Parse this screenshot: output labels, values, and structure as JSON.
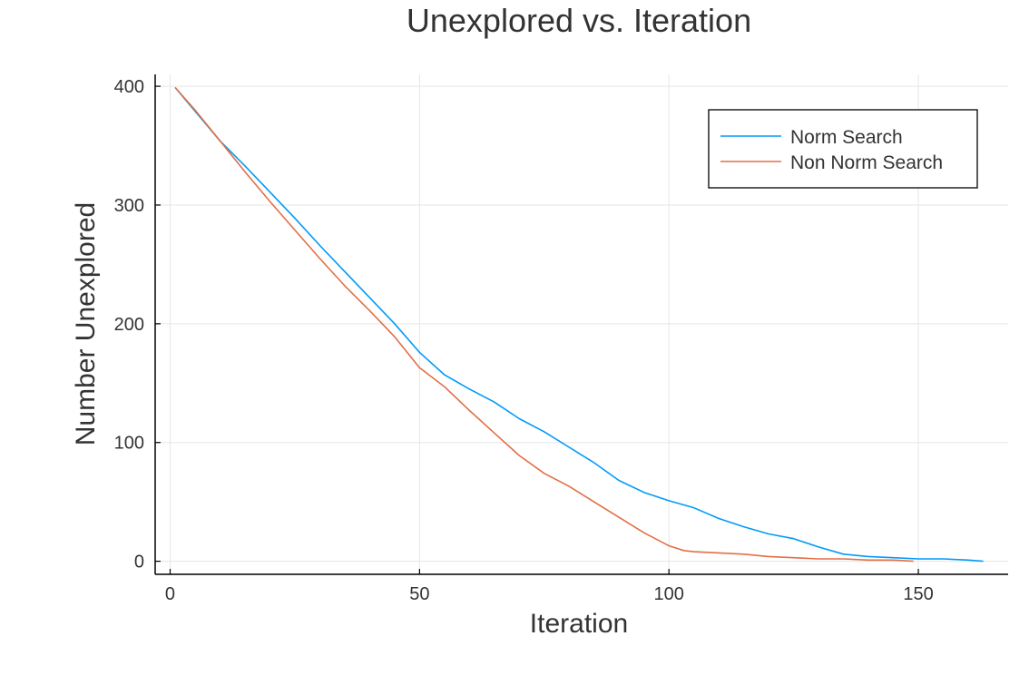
{
  "chart_data": {
    "type": "line",
    "title": "Unexplored vs. Iteration",
    "xlabel": "Iteration",
    "ylabel": "Number Unexplored",
    "xlim": [
      -3,
      168
    ],
    "ylim": [
      -11,
      410
    ],
    "xticks": [
      0,
      50,
      100,
      150
    ],
    "yticks": [
      0,
      100,
      200,
      300,
      400
    ],
    "grid": true,
    "legend_position": "top-right",
    "series": [
      {
        "name": "Norm Search",
        "color": "#009af9",
        "x": [
          1,
          5,
          10,
          15,
          20,
          25,
          30,
          35,
          40,
          45,
          50,
          55,
          60,
          65,
          70,
          75,
          80,
          85,
          90,
          95,
          100,
          105,
          110,
          115,
          120,
          125,
          130,
          135,
          140,
          145,
          150,
          155,
          160,
          163
        ],
        "y": [
          399,
          379,
          354,
          333,
          311,
          289,
          266,
          244,
          222,
          200,
          176,
          157,
          145,
          134,
          120,
          109,
          96,
          83,
          68,
          58,
          51,
          45,
          36,
          29,
          23,
          19,
          12,
          6,
          4,
          3,
          2,
          2,
          1,
          0
        ]
      },
      {
        "name": "Non Norm Search",
        "color": "#e26f46",
        "x": [
          1,
          5,
          10,
          15,
          20,
          25,
          30,
          35,
          40,
          45,
          50,
          55,
          60,
          65,
          70,
          75,
          80,
          85,
          90,
          95,
          100,
          103,
          105,
          110,
          115,
          120,
          125,
          130,
          135,
          140,
          145,
          149
        ],
        "y": [
          399,
          380,
          354,
          328,
          303,
          279,
          255,
          232,
          211,
          189,
          163,
          147,
          127,
          108,
          89,
          74,
          63,
          50,
          37,
          24,
          13,
          9,
          8,
          7,
          6,
          4,
          3,
          2,
          2,
          1,
          1,
          0
        ]
      }
    ]
  }
}
